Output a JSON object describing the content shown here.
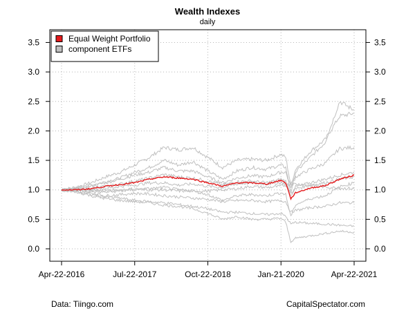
{
  "chart_data": {
    "type": "line",
    "title": "Wealth Indexes",
    "subtitle": "daily",
    "xlabel": "",
    "ylabel": "",
    "x_ticks": [
      "Apr-22-2016",
      "Jul-22-2017",
      "Oct-22-2018",
      "Jan-21-2020",
      "Apr-22-2021"
    ],
    "y_ticks": [
      "0.0",
      "0.5",
      "1.0",
      "1.5",
      "2.0",
      "2.5",
      "3.0",
      "3.5"
    ],
    "ylim": [
      0,
      3.5
    ],
    "grid": true,
    "legend_position": "top-left",
    "legend": [
      {
        "label": "Equal Weight Portfolio",
        "color": "#e41a1c"
      },
      {
        "label": "component ETFs",
        "color": "#bfbfbf"
      }
    ],
    "portfolio": {
      "name": "Equal Weight Portfolio",
      "color": "#e41a1c",
      "x": [
        "2016-04-22",
        "2016-07-22",
        "2016-10-22",
        "2017-01-22",
        "2017-04-22",
        "2017-07-22",
        "2017-10-22",
        "2018-01-22",
        "2018-04-22",
        "2018-07-22",
        "2018-10-22",
        "2019-01-22",
        "2019-04-22",
        "2019-07-22",
        "2019-10-22",
        "2020-01-21",
        "2020-02-20",
        "2020-03-23",
        "2020-04-22",
        "2020-07-22",
        "2020-10-22",
        "2021-01-22",
        "2021-04-22"
      ],
      "values": [
        1.0,
        1.0,
        1.02,
        1.06,
        1.09,
        1.12,
        1.18,
        1.22,
        1.2,
        1.18,
        1.12,
        1.06,
        1.12,
        1.12,
        1.1,
        1.16,
        1.12,
        0.85,
        0.95,
        1.03,
        1.07,
        1.18,
        1.25
      ]
    },
    "components": [
      {
        "color": "#bfbfbf",
        "values": [
          1.0,
          1.05,
          1.12,
          1.22,
          1.3,
          1.42,
          1.55,
          1.72,
          1.68,
          1.72,
          1.55,
          1.38,
          1.5,
          1.52,
          1.5,
          1.6,
          1.55,
          1.08,
          1.35,
          1.65,
          1.85,
          2.25,
          2.3
        ]
      },
      {
        "color": "#bfbfbf",
        "values": [
          1.0,
          1.02,
          1.08,
          1.14,
          1.2,
          1.3,
          1.38,
          1.5,
          1.42,
          1.48,
          1.32,
          1.18,
          1.32,
          1.38,
          1.35,
          1.42,
          1.38,
          0.95,
          1.3,
          1.55,
          1.8,
          2.5,
          2.35
        ]
      },
      {
        "color": "#bfbfbf",
        "values": [
          1.0,
          1.02,
          1.06,
          1.12,
          1.18,
          1.25,
          1.3,
          1.38,
          1.32,
          1.32,
          1.22,
          1.12,
          1.2,
          1.24,
          1.22,
          1.3,
          1.3,
          1.05,
          1.22,
          1.35,
          1.45,
          1.7,
          1.72
        ]
      },
      {
        "color": "#bfbfbf",
        "values": [
          1.0,
          1.0,
          1.02,
          1.06,
          1.1,
          1.15,
          1.2,
          1.26,
          1.22,
          1.2,
          1.15,
          1.08,
          1.14,
          1.15,
          1.12,
          1.18,
          1.15,
          0.9,
          1.05,
          1.12,
          1.18,
          1.25,
          1.3
        ]
      },
      {
        "color": "#bfbfbf",
        "values": [
          1.0,
          1.0,
          1.0,
          1.02,
          1.06,
          1.08,
          1.12,
          1.12,
          1.08,
          1.1,
          1.06,
          1.04,
          1.1,
          1.12,
          1.1,
          1.12,
          1.1,
          0.95,
          1.02,
          1.08,
          1.12,
          1.18,
          1.22
        ]
      },
      {
        "color": "#bfbfbf",
        "values": [
          1.0,
          1.02,
          1.0,
          0.98,
          1.0,
          1.02,
          1.0,
          1.0,
          0.98,
          0.98,
          0.98,
          1.0,
          1.02,
          1.06,
          1.04,
          1.06,
          1.08,
          1.1,
          1.1,
          1.08,
          1.05,
          1.03,
          1.02
        ]
      },
      {
        "color": "#bfbfbf",
        "values": [
          1.0,
          0.98,
          0.95,
          0.9,
          0.92,
          0.94,
          0.93,
          0.9,
          0.88,
          0.86,
          0.84,
          0.8,
          0.82,
          0.82,
          0.8,
          0.82,
          0.8,
          0.62,
          0.65,
          0.7,
          0.72,
          0.78,
          0.78
        ]
      },
      {
        "color": "#bfbfbf",
        "values": [
          1.0,
          0.96,
          0.92,
          0.88,
          0.86,
          0.82,
          0.8,
          0.78,
          0.75,
          0.72,
          0.68,
          0.62,
          0.62,
          0.6,
          0.58,
          0.6,
          0.55,
          0.42,
          0.45,
          0.43,
          0.42,
          0.4,
          0.38
        ]
      },
      {
        "color": "#bfbfbf",
        "values": [
          1.0,
          0.97,
          0.9,
          0.85,
          0.82,
          0.8,
          0.78,
          0.74,
          0.72,
          0.68,
          0.6,
          0.5,
          0.55,
          0.5,
          0.5,
          0.52,
          0.45,
          0.12,
          0.18,
          0.22,
          0.26,
          0.3,
          0.28
        ]
      },
      {
        "color": "#bfbfbf",
        "values": [
          1.0,
          0.99,
          0.97,
          0.96,
          0.98,
          1.0,
          1.02,
          1.04,
          1.0,
          0.98,
          0.92,
          0.82,
          0.9,
          0.92,
          0.9,
          0.95,
          0.92,
          0.55,
          0.75,
          0.85,
          0.9,
          1.05,
          1.12
        ]
      }
    ]
  },
  "footer": {
    "left": "Data: Tiingo.com",
    "right": "CapitalSpectator.com"
  }
}
